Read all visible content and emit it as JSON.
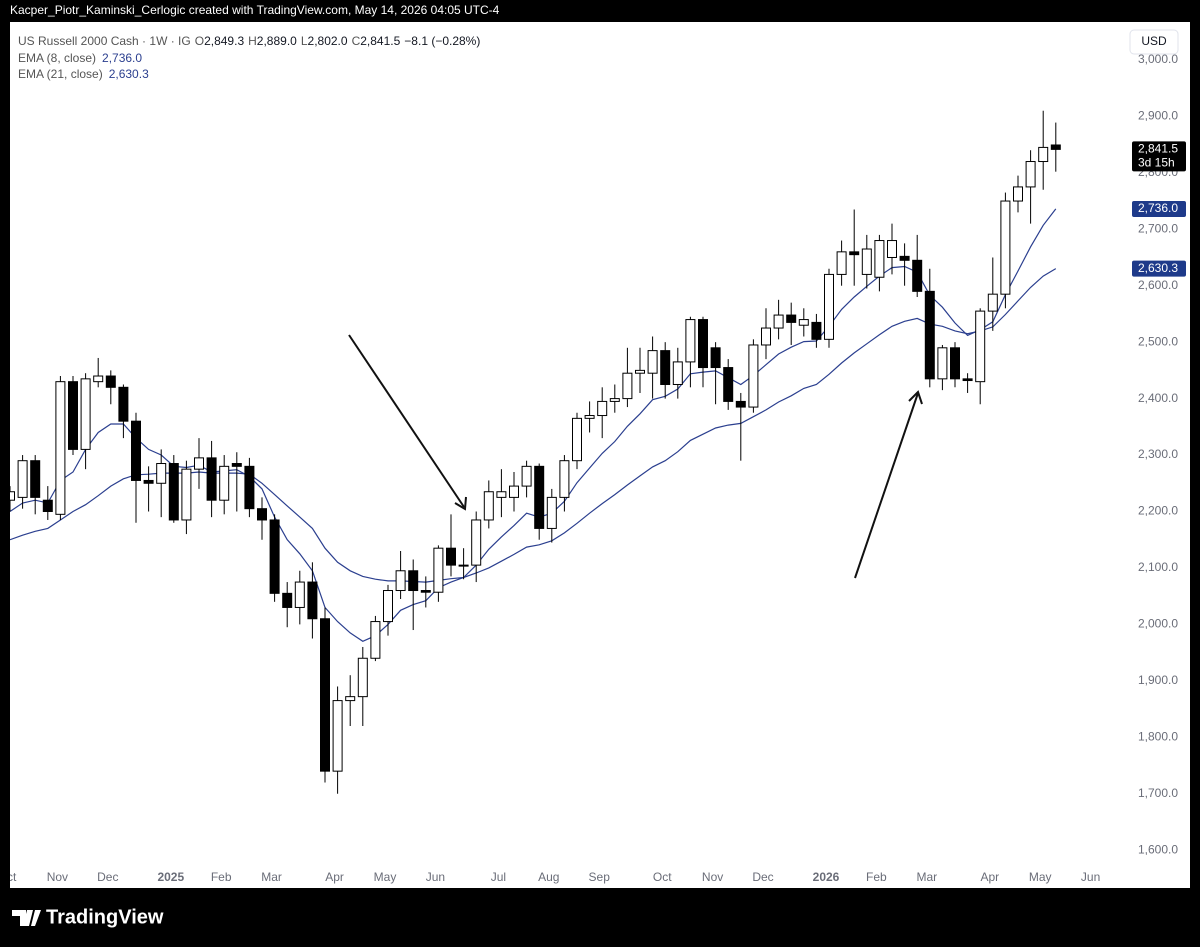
{
  "banner": "Kacper_Piotr_Kaminski_Cerlogic created with TradingView.com, May 14, 2026 04:05 UTC-4",
  "brand": "TradingView",
  "chart_data": {
    "type": "candlestick",
    "header": {
      "symbol": "US Russell 2000 Cash · 1W · IG",
      "fields": [
        {
          "key": "O",
          "text": "2,849.3"
        },
        {
          "key": "H",
          "text": "2,889.0"
        },
        {
          "key": "L",
          "text": "2,802.0"
        },
        {
          "key": "C",
          "text": "2,841.5"
        }
      ],
      "change": "−8.1 (−0.28%)"
    },
    "currency": "USD",
    "categories": [
      "Oct",
      null,
      null,
      null,
      "Nov",
      null,
      null,
      null,
      "Dec",
      null,
      null,
      null,
      null,
      "2025",
      null,
      null,
      null,
      "Feb",
      null,
      null,
      null,
      "Mar",
      null,
      null,
      null,
      null,
      "Apr",
      null,
      null,
      null,
      "May",
      null,
      null,
      null,
      "Jun",
      null,
      null,
      null,
      null,
      "Jul",
      null,
      null,
      null,
      "Aug",
      null,
      null,
      null,
      "Sep",
      null,
      null,
      null,
      null,
      "Oct",
      null,
      null,
      null,
      "Nov",
      null,
      null,
      null,
      "Dec",
      null,
      null,
      null,
      null,
      "2026",
      null,
      null,
      null,
      "Feb",
      null,
      null,
      null,
      "Mar",
      null,
      null,
      null,
      null,
      "Apr",
      null,
      null,
      null,
      "May",
      null,
      null,
      null,
      "Jun"
    ],
    "open": [
      2220,
      2225,
      2290,
      2220,
      2195,
      2430,
      2310,
      2430,
      2440,
      2420,
      2360,
      2255,
      2250,
      2285,
      2185,
      2275,
      2295,
      2220,
      2285,
      2280,
      2205,
      2185,
      2055,
      2030,
      2075,
      2010,
      1740,
      1865,
      1872,
      1940,
      2005,
      2060,
      2095,
      2060,
      2057,
      2135,
      2105,
      2105,
      2185,
      2225,
      2225,
      2245,
      2280,
      2170,
      2225,
      2290,
      2365,
      2370,
      2395,
      2400,
      2445,
      2445,
      2485,
      2425,
      2465,
      2540,
      2490,
      2455,
      2395,
      2385,
      2495,
      2525,
      2548,
      2530,
      2535,
      2505,
      2620,
      2660,
      2620,
      2615,
      2650,
      2652,
      2645,
      2590,
      2435,
      2490,
      2435,
      2430,
      2555,
      2585,
      2750,
      2775,
      2820,
      2849.3,
      null,
      null,
      null
    ],
    "high": [
      2245,
      2300,
      2300,
      2245,
      2440,
      2440,
      2445,
      2472,
      2450,
      2425,
      2375,
      2280,
      2310,
      2300,
      2290,
      2330,
      2325,
      2300,
      2305,
      2295,
      2225,
      2195,
      2075,
      2095,
      2110,
      2030,
      1890,
      1910,
      1960,
      2015,
      2070,
      2130,
      2115,
      2085,
      2140,
      2195,
      2135,
      2200,
      2255,
      2275,
      2270,
      2290,
      2285,
      2240,
      2300,
      2375,
      2395,
      2420,
      2425,
      2490,
      2490,
      2510,
      2500,
      2490,
      2545,
      2545,
      2500,
      2470,
      2410,
      2505,
      2560,
      2575,
      2570,
      2560,
      2550,
      2630,
      2680,
      2735,
      2690,
      2690,
      2710,
      2675,
      2690,
      2630,
      2495,
      2500,
      2445,
      2560,
      2650,
      2765,
      2795,
      2840,
      2910,
      2889,
      null,
      null,
      null
    ],
    "low": [
      2200,
      2205,
      2195,
      2185,
      2185,
      2300,
      2275,
      2420,
      2390,
      2330,
      2180,
      2200,
      2190,
      2180,
      2160,
      2240,
      2190,
      2195,
      2200,
      2190,
      2150,
      2040,
      1995,
      2000,
      1975,
      1720,
      1700,
      1820,
      1820,
      1935,
      1980,
      2045,
      1990,
      2030,
      2040,
      2085,
      2080,
      2075,
      2170,
      2190,
      2200,
      2225,
      2150,
      2145,
      2200,
      2275,
      2340,
      2330,
      2375,
      2385,
      2410,
      2400,
      2400,
      2400,
      2420,
      2420,
      2390,
      2380,
      2290,
      2375,
      2470,
      2505,
      2495,
      2510,
      2490,
      2490,
      2600,
      2600,
      2595,
      2590,
      2620,
      2600,
      2580,
      2420,
      2415,
      2420,
      2410,
      2390,
      2520,
      2560,
      2730,
      2710,
      2770,
      2802,
      null,
      null,
      null
    ],
    "close": [
      2235,
      2290,
      2225,
      2200,
      2430,
      2310,
      2435,
      2440,
      2420,
      2360,
      2255,
      2250,
      2285,
      2185,
      2275,
      2295,
      2220,
      2280,
      2280,
      2205,
      2185,
      2055,
      2030,
      2075,
      2010,
      1740,
      1865,
      1872,
      1940,
      2005,
      2060,
      2095,
      2060,
      2057,
      2135,
      2105,
      2105,
      2185,
      2235,
      2235,
      2245,
      2280,
      2170,
      2225,
      2290,
      2365,
      2370,
      2395,
      2400,
      2445,
      2450,
      2485,
      2425,
      2465,
      2540,
      2455,
      2455,
      2395,
      2385,
      2495,
      2525,
      2548,
      2535,
      2540,
      2505,
      2620,
      2660,
      2655,
      2665,
      2680,
      2680,
      2645,
      2590,
      2435,
      2490,
      2435,
      2432,
      2555,
      2585,
      2750,
      2775,
      2820,
      2845,
      2841.5,
      null,
      null,
      null
    ],
    "up_color": "#ffffff",
    "down_color": "#000000",
    "last_price": {
      "label": "2,841.5",
      "countdown": "3d 15h"
    },
    "series": [
      {
        "name": "EMA (8, close)",
        "color": "#2b3f8f",
        "legend_value": "2,736.0",
        "values": [
          2200,
          2215,
          2220,
          2215,
          2255,
          2270,
          2310,
          2340,
          2355,
          2355,
          2330,
          2310,
          2300,
          2280,
          2278,
          2282,
          2270,
          2272,
          2274,
          2262,
          2240,
          2190,
          2150,
          2125,
          2095,
          2030,
          2005,
          1985,
          1970,
          1980,
          2000,
          2025,
          2035,
          2042,
          2065,
          2075,
          2083,
          2105,
          2133,
          2155,
          2175,
          2197,
          2190,
          2197,
          2218,
          2251,
          2277,
          2303,
          2324,
          2351,
          2373,
          2398,
          2404,
          2417,
          2444,
          2447,
          2449,
          2437,
          2425,
          2441,
          2460,
          2479,
          2491,
          2501,
          2502,
          2528,
          2558,
          2580,
          2599,
          2617,
          2632,
          2634,
          2624,
          2583,
          2562,
          2534,
          2512,
          2522,
          2536,
          2584,
          2626,
          2669,
          2707,
          2736.0,
          null,
          null,
          null
        ]
      },
      {
        "name": "EMA (21, close)",
        "color": "#2b3f8f",
        "legend_value": "2,630.3",
        "values": [
          2150,
          2158,
          2165,
          2170,
          2185,
          2200,
          2212,
          2228,
          2245,
          2258,
          2265,
          2266,
          2268,
          2268,
          2268,
          2270,
          2268,
          2268,
          2268,
          2266,
          2250,
          2230,
          2210,
          2190,
          2170,
          2135,
          2110,
          2095,
          2085,
          2080,
          2077,
          2077,
          2076,
          2075,
          2078,
          2081,
          2083,
          2091,
          2100,
          2112,
          2124,
          2137,
          2141,
          2148,
          2162,
          2179,
          2197,
          2214,
          2230,
          2247,
          2263,
          2279,
          2290,
          2306,
          2326,
          2337,
          2348,
          2353,
          2356,
          2368,
          2380,
          2394,
          2405,
          2418,
          2425,
          2443,
          2463,
          2481,
          2497,
          2513,
          2528,
          2537,
          2542,
          2532,
          2528,
          2520,
          2515,
          2520,
          2527,
          2549,
          2573,
          2597,
          2617,
          2630.3,
          null,
          null,
          null
        ]
      }
    ],
    "ylim": [
      1533,
      3053
    ],
    "yticks": [
      {
        "value": 1600,
        "label": "1,600.0"
      },
      {
        "value": 1700,
        "label": "1,700.0"
      },
      {
        "value": 1800,
        "label": "1,800.0"
      },
      {
        "value": 1900,
        "label": "1,900.0"
      },
      {
        "value": 2000,
        "label": "2,000.0"
      },
      {
        "value": 2100,
        "label": "2,100.0"
      },
      {
        "value": 2200,
        "label": "2,200.0"
      },
      {
        "value": 2300,
        "label": "2,300.0"
      },
      {
        "value": 2400,
        "label": "2,400.0"
      },
      {
        "value": 2500,
        "label": "2,500.0"
      },
      {
        "value": 2600,
        "label": "2,600.0"
      },
      {
        "value": 2700,
        "label": "2,700.0"
      },
      {
        "value": 2800,
        "label": "2,800.0"
      },
      {
        "value": 2900,
        "label": "2,900.0"
      },
      {
        "value": 3000,
        "label": "3,000.0"
      }
    ],
    "grid": false
  }
}
